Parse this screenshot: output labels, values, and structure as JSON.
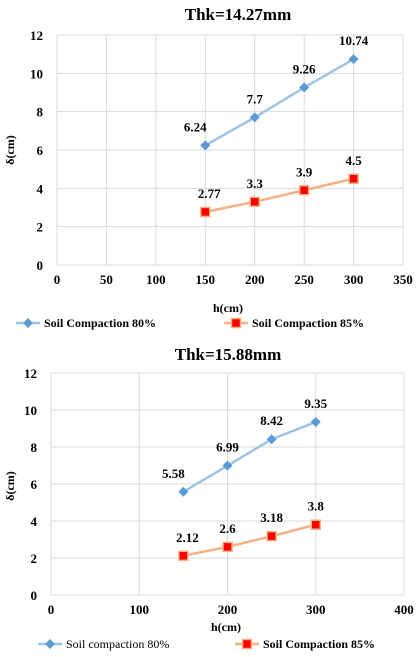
{
  "colors": {
    "series1": "#9dc3e6",
    "series1_marker": "#5b9bd5",
    "series2": "#f4b183",
    "series2_marker": "#ff0000",
    "grid": "#d9d9d9"
  },
  "chart_data": [
    {
      "type": "line",
      "title": "Thk=14.27mm",
      "xlabel": "h(cm)",
      "ylabel": "δ(cm)",
      "xlim": [
        0,
        350
      ],
      "ylim": [
        0,
        12
      ],
      "xticks": [
        "0",
        "50",
        "100",
        "150",
        "200",
        "250",
        "300",
        "350"
      ],
      "yticks": [
        "0",
        "2",
        "4",
        "6",
        "8",
        "10",
        "12"
      ],
      "x": [
        150,
        200,
        250,
        300
      ],
      "grid": true,
      "legend_position": "bottom",
      "series": [
        {
          "name": "Soil Compaction 80%",
          "values": [
            6.24,
            7.7,
            9.26,
            10.74
          ],
          "labels": [
            "6.24",
            "7.7",
            "9.26",
            "10.74"
          ],
          "marker": "diamond"
        },
        {
          "name": "Soil Compaction 85%",
          "values": [
            2.77,
            3.3,
            3.9,
            4.5
          ],
          "labels": [
            "2.77",
            "3.3",
            "3.9",
            "4.5"
          ],
          "marker": "square"
        }
      ]
    },
    {
      "type": "line",
      "title": "Thk=15.88mm",
      "xlabel": "h(cm)",
      "ylabel": "δ(cm)",
      "xlim": [
        0,
        400
      ],
      "ylim": [
        0,
        12
      ],
      "xticks": [
        "0",
        "100",
        "200",
        "300",
        "400"
      ],
      "yticks": [
        "0",
        "2",
        "4",
        "6",
        "8",
        "10",
        "12"
      ],
      "x": [
        150,
        200,
        250,
        300
      ],
      "grid": true,
      "legend_position": "bottom",
      "series": [
        {
          "name": "Soil compaction 80%",
          "values": [
            5.58,
            6.99,
            8.42,
            9.35
          ],
          "labels": [
            "5.58",
            "6.99",
            "8.42",
            "9.35"
          ],
          "marker": "diamond"
        },
        {
          "name": "Soil Compaction 85%",
          "values": [
            2.12,
            2.6,
            3.18,
            3.8
          ],
          "labels": [
            "2.12",
            "2.6",
            "3.18",
            "3.8"
          ],
          "marker": "square"
        }
      ]
    }
  ]
}
